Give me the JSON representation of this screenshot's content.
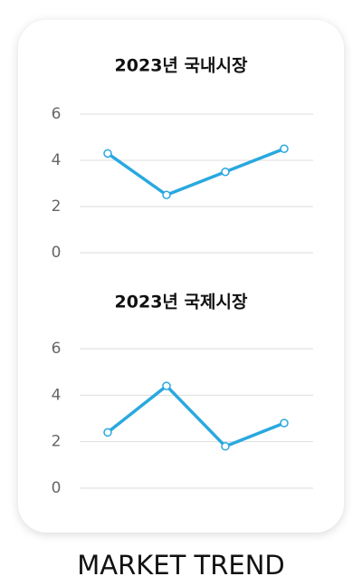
{
  "chart_data": [
    {
      "type": "line",
      "title": "2023년 국내시장",
      "categories": [
        null,
        null,
        null,
        null
      ],
      "series": [
        {
          "color": "#29a8df",
          "values": [
            4.3,
            2.5,
            3.5,
            4.5
          ]
        }
      ],
      "ylim": [
        0,
        6
      ],
      "yticks": [
        0,
        2,
        4,
        6
      ],
      "grid": true
    },
    {
      "type": "line",
      "title": "2023년 국제시장",
      "categories": [
        null,
        null,
        null,
        null
      ],
      "series": [
        {
          "color": "#29a8df",
          "values": [
            2.4,
            4.4,
            1.8,
            2.8
          ]
        }
      ],
      "ylim": [
        0,
        6
      ],
      "yticks": [
        0,
        2,
        4,
        6
      ],
      "grid": true
    }
  ],
  "footer": {
    "title": "MARKET TREND"
  }
}
